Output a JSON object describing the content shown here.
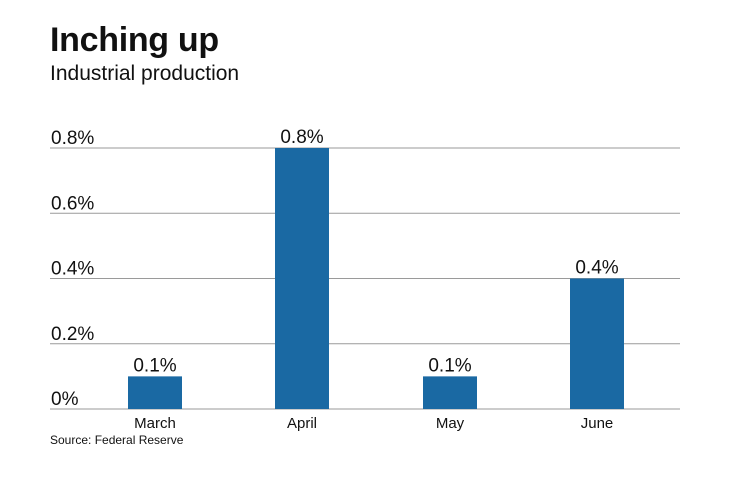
{
  "chart_data": {
    "type": "bar",
    "title": "Inching up",
    "subtitle": "Industrial production",
    "source": "Source: Federal Reserve",
    "categories": [
      "March",
      "April",
      "May",
      "June"
    ],
    "values": [
      0.1,
      0.8,
      0.1,
      0.4
    ],
    "data_labels": [
      "0.1%",
      "0.8%",
      "0.1%",
      "0.4%"
    ],
    "yticks": [
      0,
      0.2,
      0.4,
      0.6,
      0.8
    ],
    "ytick_labels": [
      "0%",
      "0.2%",
      "0.4%",
      "0.6%",
      "0.8%"
    ],
    "ylim": [
      0,
      0.8
    ],
    "grid": true,
    "legend": "none",
    "bar_color": "#1a69a3",
    "grid_color": "#9a9a9a"
  }
}
